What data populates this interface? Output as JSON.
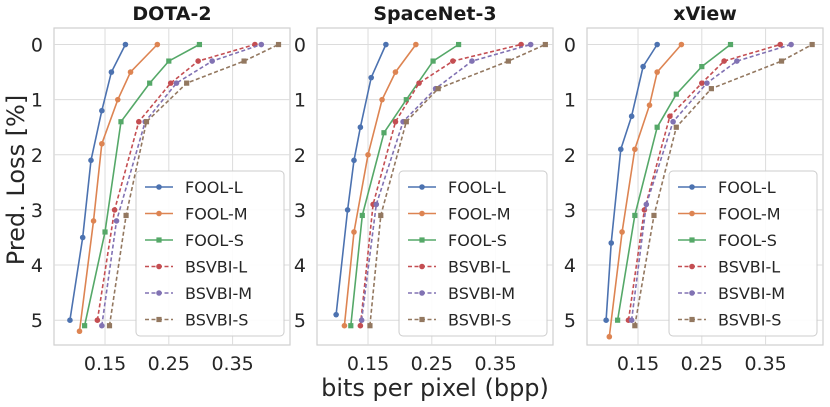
{
  "chart_data": [
    {
      "type": "line",
      "title": "DOTA-2",
      "xlabel": "bits per pixel (bpp)",
      "ylabel": "Pred. Loss [%]",
      "xlim": [
        0.07,
        0.44
      ],
      "ylim": [
        5.45,
        -0.3
      ],
      "xticks": [
        "0.15",
        "0.25",
        "0.35"
      ],
      "yticks": [
        "0",
        "1",
        "2",
        "3",
        "4",
        "5"
      ],
      "grid": true,
      "legend_position": "lower-right",
      "series": [
        {
          "name": "FOOL-L",
          "color": "#4c72b0",
          "marker": "circle",
          "dash": "solid",
          "x": [
            0.095,
            0.115,
            0.128,
            0.145,
            0.16,
            0.182
          ],
          "y": [
            5.0,
            3.5,
            2.1,
            1.2,
            0.5,
            0.0
          ]
        },
        {
          "name": "FOOL-M",
          "color": "#dd8452",
          "marker": "circle",
          "dash": "solid",
          "x": [
            0.11,
            0.132,
            0.145,
            0.17,
            0.19,
            0.232
          ],
          "y": [
            5.2,
            3.2,
            1.8,
            1.0,
            0.5,
            0.0
          ]
        },
        {
          "name": "FOOL-S",
          "color": "#55a868",
          "marker": "square",
          "dash": "solid",
          "x": [
            0.118,
            0.15,
            0.175,
            0.22,
            0.25,
            0.298
          ],
          "y": [
            5.1,
            3.4,
            1.4,
            0.7,
            0.3,
            0.0
          ]
        },
        {
          "name": "BSVBI-L",
          "color": "#c44e52",
          "marker": "circle",
          "dash": "dashed",
          "x": [
            0.138,
            0.165,
            0.203,
            0.253,
            0.296,
            0.385
          ],
          "y": [
            5.0,
            3.0,
            1.4,
            0.7,
            0.3,
            0.0
          ]
        },
        {
          "name": "BSVBI-M",
          "color": "#8172b3",
          "marker": "circle",
          "dash": "dashed",
          "x": [
            0.145,
            0.168,
            0.213,
            0.262,
            0.318,
            0.395
          ],
          "y": [
            5.1,
            3.2,
            1.4,
            0.7,
            0.3,
            0.0
          ]
        },
        {
          "name": "BSVBI-S",
          "color": "#937860",
          "marker": "square",
          "dash": "dashed",
          "x": [
            0.157,
            0.183,
            0.215,
            0.278,
            0.368,
            0.422
          ],
          "y": [
            5.1,
            3.1,
            1.4,
            0.7,
            0.3,
            0.0
          ]
        }
      ]
    },
    {
      "type": "line",
      "title": "SpaceNet-3",
      "xlabel": "bits per pixel (bpp)",
      "ylabel": "",
      "xlim": [
        0.07,
        0.44
      ],
      "ylim": [
        5.45,
        -0.3
      ],
      "xticks": [
        "0.15",
        "0.25",
        "0.35"
      ],
      "yticks": [
        "0",
        "1",
        "2",
        "3",
        "4",
        "5"
      ],
      "grid": true,
      "legend_position": "lower-right",
      "series": [
        {
          "name": "FOOL-L",
          "color": "#4c72b0",
          "marker": "circle",
          "dash": "solid",
          "x": [
            0.1,
            0.118,
            0.128,
            0.138,
            0.155,
            0.178
          ],
          "y": [
            4.9,
            3.0,
            2.1,
            1.5,
            0.6,
            0.0
          ]
        },
        {
          "name": "FOOL-M",
          "color": "#dd8452",
          "marker": "circle",
          "dash": "solid",
          "x": [
            0.113,
            0.128,
            0.15,
            0.172,
            0.193,
            0.225
          ],
          "y": [
            5.1,
            3.4,
            2.0,
            1.0,
            0.5,
            0.0
          ]
        },
        {
          "name": "FOOL-S",
          "color": "#55a868",
          "marker": "square",
          "dash": "solid",
          "x": [
            0.123,
            0.141,
            0.175,
            0.21,
            0.252,
            0.292
          ],
          "y": [
            5.1,
            3.1,
            1.6,
            1.0,
            0.3,
            0.0
          ]
        },
        {
          "name": "BSVBI-L",
          "color": "#c44e52",
          "marker": "circle",
          "dash": "dashed",
          "x": [
            0.138,
            0.158,
            0.193,
            0.23,
            0.283,
            0.39
          ],
          "y": [
            5.1,
            2.9,
            1.4,
            0.7,
            0.3,
            0.0
          ]
        },
        {
          "name": "BSVBI-M",
          "color": "#8172b3",
          "marker": "circle",
          "dash": "dashed",
          "x": [
            0.14,
            0.163,
            0.205,
            0.256,
            0.313,
            0.405
          ],
          "y": [
            5.0,
            2.9,
            1.4,
            0.8,
            0.3,
            0.0
          ]
        },
        {
          "name": "BSVBI-S",
          "color": "#937860",
          "marker": "square",
          "dash": "dashed",
          "x": [
            0.153,
            0.17,
            0.21,
            0.26,
            0.37,
            0.428
          ],
          "y": [
            5.1,
            3.1,
            1.4,
            0.8,
            0.3,
            0.0
          ]
        }
      ]
    },
    {
      "type": "line",
      "title": "xView",
      "xlabel": "bits per pixel (bpp)",
      "ylabel": "",
      "xlim": [
        0.07,
        0.44
      ],
      "ylim": [
        5.45,
        -0.3
      ],
      "xticks": [
        "0.15",
        "0.25",
        "0.35"
      ],
      "yticks": [
        "0",
        "1",
        "2",
        "3",
        "4",
        "5"
      ],
      "grid": true,
      "legend_position": "lower-right",
      "series": [
        {
          "name": "FOOL-L",
          "color": "#4c72b0",
          "marker": "circle",
          "dash": "solid",
          "x": [
            0.1,
            0.108,
            0.123,
            0.14,
            0.158,
            0.18
          ],
          "y": [
            5.0,
            3.6,
            1.9,
            1.3,
            0.4,
            0.0
          ]
        },
        {
          "name": "FOOL-M",
          "color": "#dd8452",
          "marker": "circle",
          "dash": "solid",
          "x": [
            0.105,
            0.125,
            0.145,
            0.168,
            0.18,
            0.218
          ],
          "y": [
            5.3,
            3.4,
            1.9,
            1.1,
            0.5,
            0.0
          ]
        },
        {
          "name": "FOOL-S",
          "color": "#55a868",
          "marker": "square",
          "dash": "solid",
          "x": [
            0.118,
            0.145,
            0.18,
            0.21,
            0.25,
            0.295
          ],
          "y": [
            5.0,
            3.1,
            1.5,
            0.9,
            0.4,
            0.0
          ]
        },
        {
          "name": "BSVBI-L",
          "color": "#c44e52",
          "marker": "circle",
          "dash": "dashed",
          "x": [
            0.135,
            0.16,
            0.2,
            0.25,
            0.285,
            0.373
          ],
          "y": [
            5.0,
            3.0,
            1.3,
            0.7,
            0.3,
            0.0
          ]
        },
        {
          "name": "BSVBI-M",
          "color": "#8172b3",
          "marker": "circle",
          "dash": "dashed",
          "x": [
            0.14,
            0.163,
            0.205,
            0.258,
            0.305,
            0.39
          ],
          "y": [
            5.0,
            2.9,
            1.4,
            0.7,
            0.3,
            0.0
          ]
        },
        {
          "name": "BSVBI-S",
          "color": "#937860",
          "marker": "square",
          "dash": "dashed",
          "x": [
            0.145,
            0.175,
            0.21,
            0.265,
            0.375,
            0.423
          ],
          "y": [
            5.1,
            3.1,
            1.5,
            0.8,
            0.3,
            0.0
          ]
        }
      ]
    }
  ]
}
